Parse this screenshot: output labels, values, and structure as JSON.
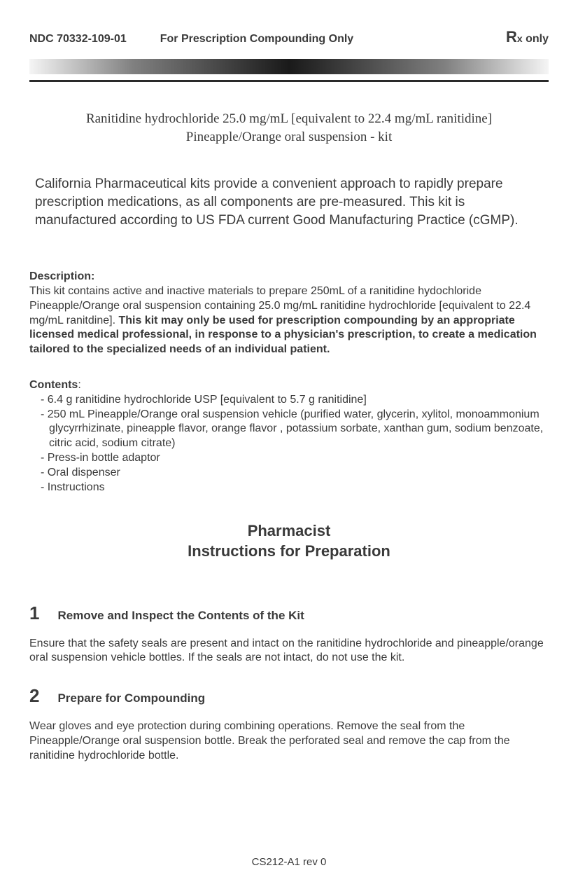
{
  "header": {
    "ndc": "NDC 70332-109-01",
    "purpose": "For Prescription Compounding Only",
    "rx_R": "R",
    "rx_x": "x",
    "rx_only": " only"
  },
  "product_title_line1": "Ranitidine hydrochloride 25.0 mg/mL [equivalent to 22.4 mg/mL ranitidine]",
  "product_title_line2": "Pineapple/Orange oral suspension - kit",
  "intro": "California Pharmaceutical  kits provide a convenient approach to rapidly prepare prescription medications, as all components are pre-measured. This kit is manufactured according to US FDA current Good Manufacturing Practice (cGMP).",
  "description": {
    "label": "Description:",
    "body_pre": "This kit contains active and inactive materials to prepare 250mL of a ranitidine hydochloride Pineapple/Orange oral suspension containing 25.0 mg/mL ranitidine hydrochloride [equivalent to 22.4 mg/mL ranitdine]. ",
    "body_bold": "This kit may only be used for prescription compounding by an appropriate licensed medical professional, in response to a physician's prescription, to create a medication tailored to the specialized needs of an individual patient."
  },
  "contents": {
    "label": "Contents",
    "colon": ":",
    "items": [
      "- 6.4 g ranitidine hydrochloride USP [equivalent to 5.7 g ranitidine]",
      "- 250 mL Pineapple/Orange oral suspension vehicle (purified water, glycerin, xylitol, monoammonium glycyrrhizinate, pineapple flavor, orange flavor , potassium sorbate, xanthan gum, sodium benzoate, citric acid, sodium citrate)",
      "- Press-in bottle adaptor",
      "- Oral dispenser",
      "- Instructions"
    ]
  },
  "pharmacist_heading_line1": "Pharmacist",
  "pharmacist_heading_line2": "Instructions for Preparation",
  "steps": [
    {
      "number": "1",
      "title": "Remove and Inspect the Contents of the Kit",
      "body": "Ensure that the safety seals are present and intact on the ranitidine hydrochloride and pineapple/orange oral suspension vehicle bottles. If the seals are not intact, do not use the kit."
    },
    {
      "number": "2",
      "title": "Prepare for Compounding",
      "body": "Wear gloves and eye protection during combining operations. Remove the seal from the Pineapple/Orange oral suspension bottle. Break the perforated seal and remove the cap from the ranitidine hydrochloride bottle."
    }
  ],
  "footer_code": "CS212-A1 rev 0",
  "colors": {
    "text": "#3a3a3a",
    "background": "#ffffff",
    "rule": "#2a2a2a"
  }
}
